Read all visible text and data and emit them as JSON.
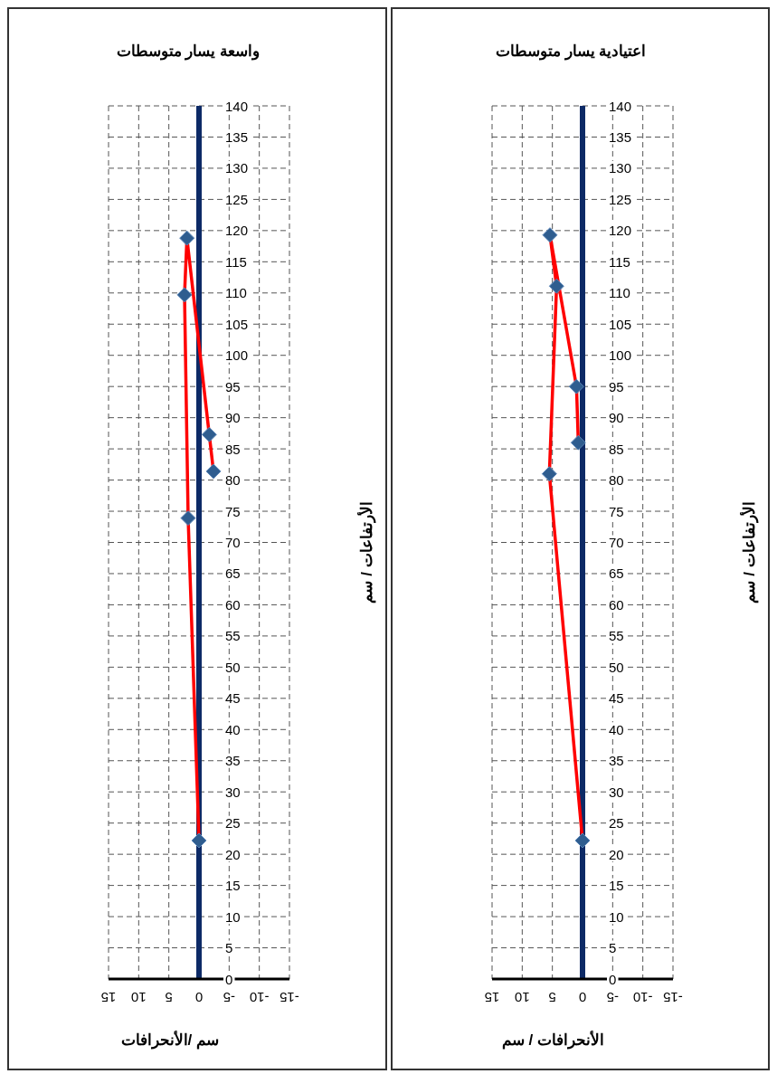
{
  "chart_data": [
    {
      "type": "line",
      "title": "واسعة يسار متوسطات",
      "xlabel": "سم /الأنحرافات",
      "ylabel": "الأرتفاعات / سم",
      "xlim": [
        15,
        -15
      ],
      "xticks": [
        15,
        10,
        5,
        0,
        -5,
        -10,
        -15
      ],
      "ylim": [
        0,
        140
      ],
      "yticks": [
        0,
        5,
        10,
        15,
        20,
        25,
        30,
        35,
        40,
        45,
        50,
        55,
        60,
        65,
        70,
        75,
        80,
        85,
        90,
        95,
        100,
        105,
        110,
        115,
        120,
        125,
        130,
        135,
        140
      ],
      "grid": true,
      "legend": false,
      "marker": "diamond",
      "line_style": "solid",
      "series": [
        {
          "color": "#ff0000",
          "colors": [
            "#2f5d8f",
            "#2f5d8f",
            "#2f5d8f",
            "#2f5d8f",
            "#2f5d8f",
            "#2f5d8f"
          ],
          "x": [
            0,
            1.8,
            2.4,
            2,
            -1.7,
            -2.4
          ],
          "values": [
            22.2,
            73.9,
            109.7,
            118.8,
            87.3,
            81.4
          ]
        }
      ]
    },
    {
      "type": "line",
      "title": "اعتيادية يسار متوسطات",
      "xlabel": "الأنحرافات / سم",
      "ylabel": "الأرتفاعات / سم",
      "xlim": [
        15,
        -15
      ],
      "xticks": [
        15,
        10,
        5,
        0,
        -5,
        -10,
        -15
      ],
      "ylim": [
        0,
        140
      ],
      "yticks": [
        0,
        5,
        10,
        15,
        20,
        25,
        30,
        35,
        40,
        45,
        50,
        55,
        60,
        65,
        70,
        75,
        80,
        85,
        90,
        95,
        100,
        105,
        110,
        115,
        120,
        125,
        130,
        135,
        140
      ],
      "grid": true,
      "legend": false,
      "marker": "diamond",
      "line_style": "solid",
      "series": [
        {
          "color": "#ff0000",
          "colors": [
            "#2f5d8f",
            "#2f5d8f",
            "#2f5d8f",
            "#2f5d8f",
            "#2f5d8f",
            "#2f5d8f"
          ],
          "x": [
            0,
            5.5,
            4.3,
            5.4,
            1,
            0.7
          ],
          "values": [
            22.2,
            81,
            111.1,
            119.3,
            95,
            86
          ]
        }
      ]
    }
  ]
}
